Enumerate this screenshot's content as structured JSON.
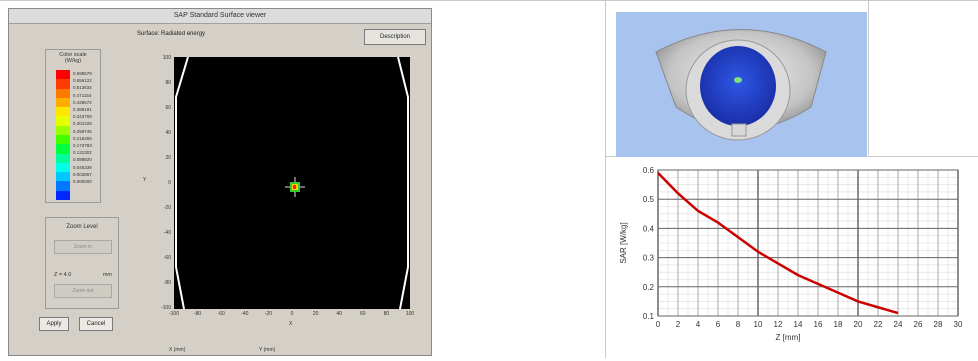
{
  "window": {
    "title": "SAP Standard Surface viewer",
    "surface_label": "Surface:  Radiated energy",
    "description_button": "Description",
    "color_scale": {
      "title_line1": "Color scale",
      "title_line2": "(W/kg)",
      "colors": [
        "#ff0000",
        "#ff3c00",
        "#ff7800",
        "#ffae00",
        "#ffe600",
        "#e6ff00",
        "#9aff00",
        "#44ff00",
        "#00ff3c",
        "#00ff9a",
        "#00ffe6",
        "#00c8ff",
        "#0078ff",
        "#0028ff"
      ],
      "values": [
        "0.598579",
        "0.556122",
        "0.513634",
        "0.471154",
        "0.428672",
        "0.386191",
        "0.343709",
        "0.301228",
        "0.258746",
        "0.216265",
        "0.173783",
        "0.131302",
        "0.088820",
        "0.046339",
        "0.003857",
        "0.000000"
      ]
    },
    "zoom": {
      "title": "Zoom Level",
      "zoom_in": "Zoom in",
      "zoom_label": "Z =",
      "zoom_value": "4.0",
      "zoom_unit": "mm",
      "zoom_out": "Zoom out"
    },
    "apply_button": "Apply",
    "cancel_button": "Cancel",
    "plot": {
      "y_ticks": [
        "100",
        "80",
        "60",
        "40",
        "20",
        "0",
        "-20",
        "-40",
        "-60",
        "-80",
        "-100"
      ],
      "x_ticks": [
        "-100",
        "-80",
        "-60",
        "-40",
        "-20",
        "0",
        "20",
        "40",
        "60",
        "80",
        "100"
      ],
      "x_axis_label": "X",
      "y_axis_label": "Y"
    },
    "bottom_row": {
      "left_value": "X (mm)",
      "mid_value": "Y (mm)"
    }
  },
  "view3d": {
    "outer_color": "#c0c0c0",
    "inner_color": "#1f3ed1",
    "background": "#a9c3ef"
  },
  "chart_data": {
    "type": "line",
    "xlabel": "Z [mm]",
    "ylabel": "SAR [W/kg]",
    "xlim": [
      0,
      30
    ],
    "ylim": [
      0.1,
      0.6
    ],
    "x_ticks": [
      0,
      2,
      4,
      6,
      8,
      10,
      12,
      14,
      16,
      18,
      20,
      22,
      24,
      26,
      28,
      30
    ],
    "y_ticks": [
      0.1,
      0.2,
      0.3,
      0.4,
      0.5,
      0.6
    ],
    "grid": true,
    "series": [
      {
        "color": "#cc0000",
        "x": [
          0,
          2,
          4,
          6,
          8,
          10,
          12,
          14,
          16,
          18,
          20,
          22,
          24
        ],
        "y": [
          0.59,
          0.52,
          0.46,
          0.42,
          0.37,
          0.32,
          0.28,
          0.24,
          0.21,
          0.18,
          0.15,
          0.13,
          0.11
        ]
      }
    ]
  }
}
